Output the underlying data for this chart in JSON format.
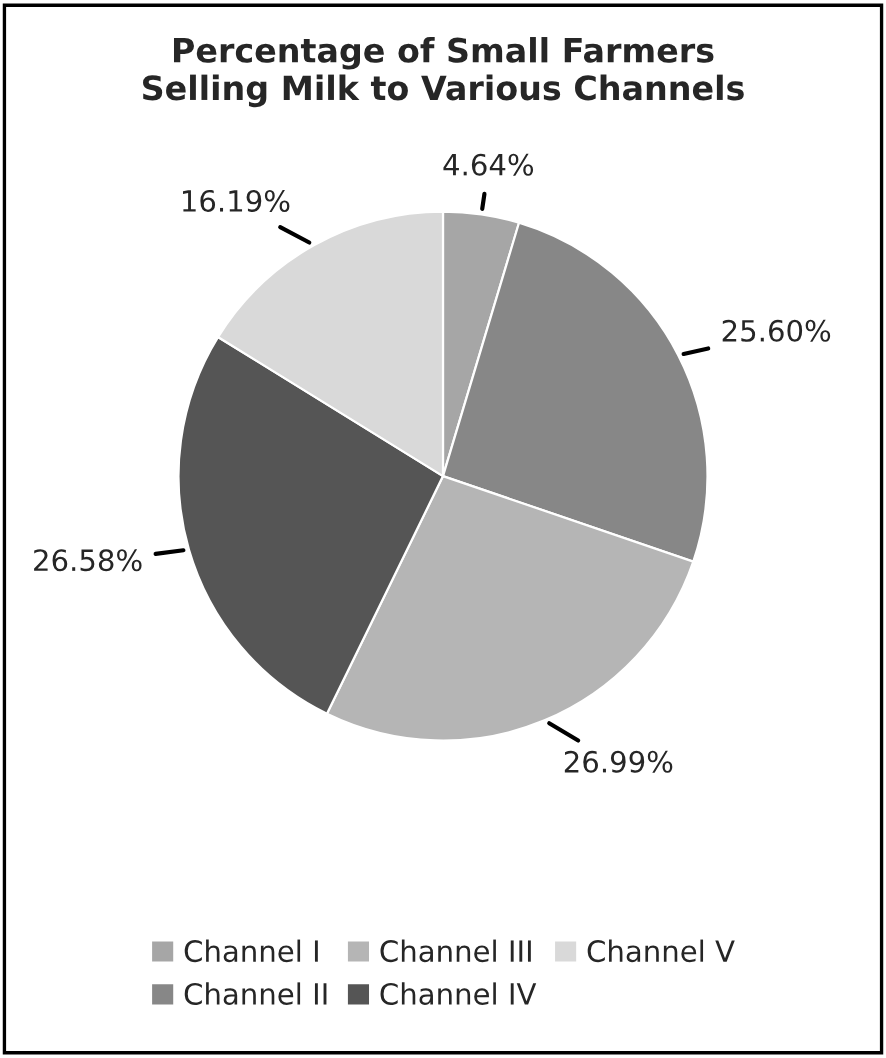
{
  "chart_data": {
    "type": "pie",
    "title": "Percentage of Small Farmers\nSelling Milk to Various Channels",
    "categories": [
      "Channel I",
      "Channel II",
      "Channel III",
      "Channel IV",
      "Channel V"
    ],
    "values": [
      4.64,
      25.6,
      26.99,
      26.58,
      16.19
    ],
    "value_labels": [
      "4.64%",
      "25.60%",
      "26.99%",
      "26.58%",
      "16.19%"
    ],
    "colors": [
      "#a6a6a6",
      "#878787",
      "#b5b5b5",
      "#555555",
      "#d9d9d9"
    ],
    "legend": "bottom"
  }
}
